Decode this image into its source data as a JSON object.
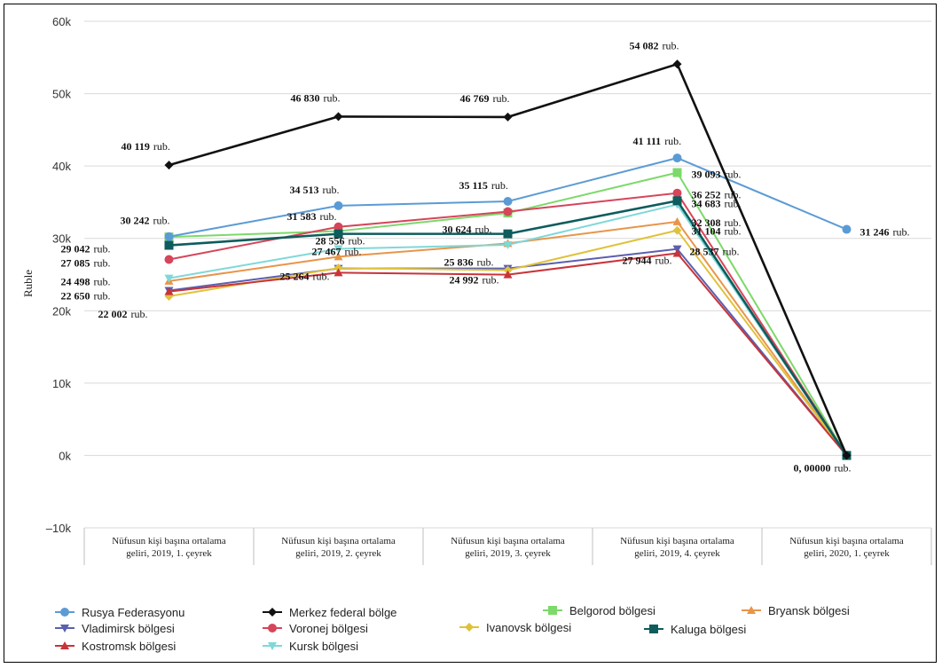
{
  "chart_data": {
    "type": "line",
    "ylabel": "Ruble",
    "ylim": [
      -10000,
      60000
    ],
    "yticks": [
      {
        "value": 60000,
        "label": "60k"
      },
      {
        "value": 50000,
        "label": "50k"
      },
      {
        "value": 40000,
        "label": "40k"
      },
      {
        "value": 30000,
        "label": "30k"
      },
      {
        "value": 20000,
        "label": "20k"
      },
      {
        "value": 10000,
        "label": "10k"
      },
      {
        "value": 0,
        "label": "0k"
      },
      {
        "value": -10000,
        "label": "–10k"
      }
    ],
    "grid": true,
    "legend_position": "bottom",
    "categories": [
      [
        "Nüfusun kişi başına ortalama",
        "geliri, 2019, 1. çeyrek"
      ],
      [
        "Nüfusun kişi başına ortalama",
        "geliri, 2019, 2. çeyrek"
      ],
      [
        "Nüfusun kişi başına ortalama",
        "geliri, 2019, 3. çeyrek"
      ],
      [
        "Nüfusun kişi başına ortalama",
        "geliri, 2019, 4. çeyrek"
      ],
      [
        "Nüfusun kişi başına ortalama",
        "geliri, 2020, 1. çeyrek"
      ]
    ],
    "series": [
      {
        "name": "Rusya Federasyonu",
        "color": "#5b9bd5",
        "marker": "circle",
        "values": [
          30242,
          34513,
          35115,
          41111,
          31246
        ]
      },
      {
        "name": "Merkez federal bölge",
        "color": "#111111",
        "marker": "diamond",
        "values": [
          40119,
          46830,
          46769,
          54082,
          0
        ]
      },
      {
        "name": "Belgorod bölgesi",
        "color": "#7cd96a",
        "marker": "square",
        "values": [
          30200,
          31000,
          33500,
          39093,
          0
        ]
      },
      {
        "name": "Bryansk bölgesi",
        "color": "#e8954a",
        "marker": "triangle",
        "values": [
          24100,
          27467,
          29300,
          32308,
          0
        ]
      },
      {
        "name": "Vladimirsk bölgesi",
        "color": "#5a5fb0",
        "marker": "triangle-down",
        "values": [
          22800,
          25836,
          25836,
          28537,
          0
        ]
      },
      {
        "name": "Voronej bölgesi",
        "color": "#d6455a",
        "marker": "circle",
        "values": [
          27085,
          31583,
          33700,
          36252,
          0
        ]
      },
      {
        "name": "Ivanovsk bölgesi",
        "color": "#e0c23a",
        "marker": "diamond",
        "values": [
          22002,
          25900,
          25600,
          31104,
          0
        ]
      },
      {
        "name": "Kaluga  bölgesi",
        "color": "#0e5c5c",
        "marker": "square",
        "values": [
          29042,
          30624,
          30624,
          35200,
          0
        ]
      },
      {
        "name": "Kostromsk bölgesi",
        "color": "#c8343a",
        "marker": "triangle",
        "values": [
          22650,
          25264,
          24992,
          27944,
          0
        ]
      },
      {
        "name": "Kursk bölgesi",
        "color": "#7fd8d8",
        "marker": "triangle-down",
        "values": [
          24498,
          28556,
          29100,
          34683,
          0
        ]
      }
    ],
    "data_labels": [
      {
        "cat": 0,
        "value": 40119,
        "num": "40 119",
        "unit": "rub."
      },
      {
        "cat": 1,
        "value": 46830,
        "num": "46 830",
        "unit": "rub."
      },
      {
        "cat": 2,
        "value": 46769,
        "num": "46 769",
        "unit": "rub."
      },
      {
        "cat": 3,
        "value": 54082,
        "num": "54 082",
        "unit": "rub."
      },
      {
        "cat": 3,
        "value": 41111,
        "num": "41 111",
        "unit": "rub."
      },
      {
        "cat": 1,
        "value": 34513,
        "num": "34 513",
        "unit": "rub."
      },
      {
        "cat": 2,
        "value": 35115,
        "num": "35 115",
        "unit": "rub."
      },
      {
        "cat": 0,
        "value": 30242,
        "num": "30 242",
        "unit": "rub."
      },
      {
        "cat": 1,
        "value": 31583,
        "num": "31 583",
        "unit": "rub."
      },
      {
        "cat": 2,
        "value": 30624,
        "num": "30 624",
        "unit": "rub."
      },
      {
        "cat": 0,
        "value": 29042,
        "num": "29 042",
        "unit": "rub."
      },
      {
        "cat": 1,
        "value": 28556,
        "num": "28 556",
        "unit": "rub."
      },
      {
        "cat": 0,
        "value": 27085,
        "num": "27 085",
        "unit": "rub."
      },
      {
        "cat": 1,
        "value": 27467,
        "num": "27 467",
        "unit": "rub."
      },
      {
        "cat": 2,
        "value": 25836,
        "num": "25 836",
        "unit": "rub."
      },
      {
        "cat": 0,
        "value": 24498,
        "num": "24 498",
        "unit": "rub."
      },
      {
        "cat": 0,
        "value": 22650,
        "num": "22 650",
        "unit": "rub."
      },
      {
        "cat": 1,
        "value": 25264,
        "num": "25 264",
        "unit": "rub."
      },
      {
        "cat": 2,
        "value": 24992,
        "num": "24 992",
        "unit": "rub."
      },
      {
        "cat": 0,
        "value": 22002,
        "num": "22 002",
        "unit": "rub."
      },
      {
        "cat": 3,
        "value": 39093,
        "num": "39 093",
        "unit": "rub."
      },
      {
        "cat": 3,
        "value": 36252,
        "num": "36 252",
        "unit": "rub."
      },
      {
        "cat": 3,
        "value": 34683,
        "num": "34 683",
        "unit": "rub."
      },
      {
        "cat": 3,
        "value": 32308,
        "num": "32 308",
        "unit": "rub."
      },
      {
        "cat": 3,
        "value": 31104,
        "num": "31 104",
        "unit": "rub."
      },
      {
        "cat": 3,
        "value": 28537,
        "num": "28 537",
        "unit": "rub."
      },
      {
        "cat": 3,
        "value": 27944,
        "num": "27 944",
        "unit": "rub."
      },
      {
        "cat": 4,
        "value": 31246,
        "num": "31 246",
        "unit": "rub."
      },
      {
        "cat": 4,
        "value": 0,
        "num": "0, 00000",
        "unit": "rub."
      }
    ]
  }
}
